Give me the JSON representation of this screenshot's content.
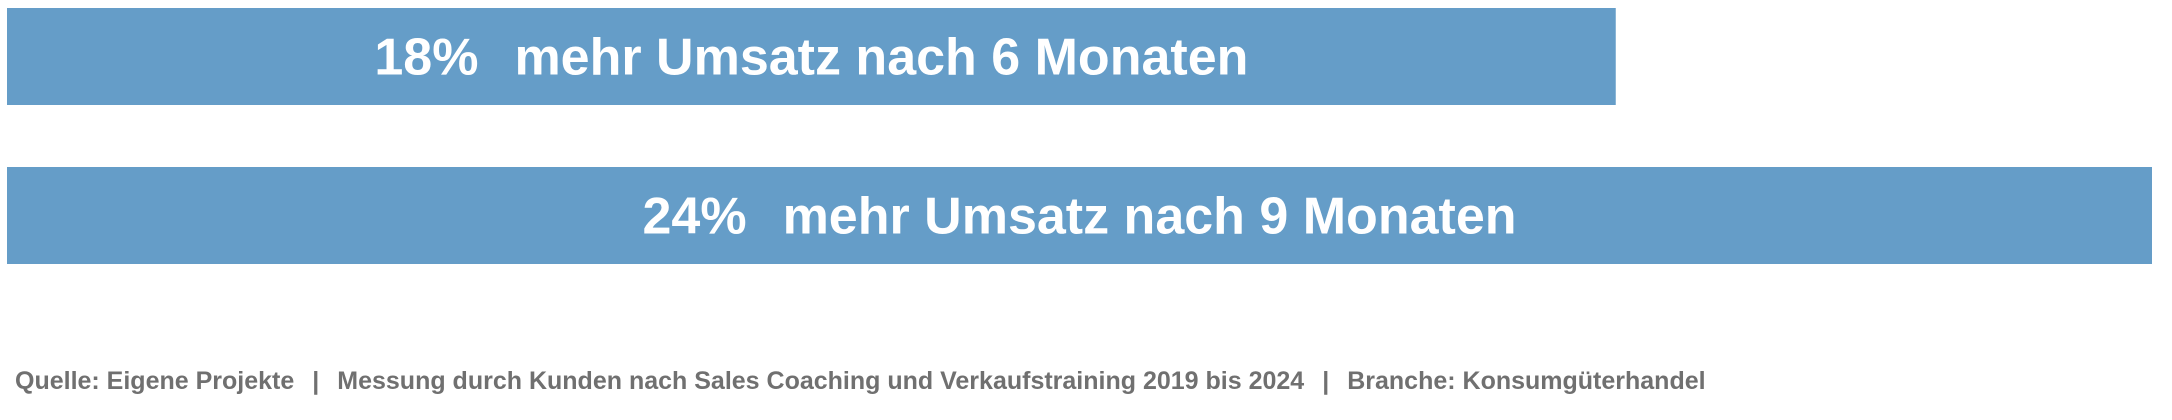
{
  "chart_data": {
    "type": "bar",
    "orientation": "horizontal",
    "bar_color": "#659dc8",
    "xlim": [
      0,
      24
    ],
    "bars": [
      {
        "value": 18,
        "value_label": "18%",
        "text": "mehr Umsatz nach 6 Monaten"
      },
      {
        "value": 24,
        "value_label": "24%",
        "text": "mehr Umsatz nach 9 Monaten"
      }
    ]
  },
  "footer": {
    "source": "Quelle: Eigene Projekte",
    "separator": "|",
    "measurement": "Messung durch Kunden nach Sales Coaching und Verkaufstraining 2019 bis 2024",
    "industry": "Branche: Konsumgüterhandel"
  },
  "colors": {
    "bar": "#659dc8",
    "label_text": "#ffffff",
    "footer_text": "#707070"
  }
}
